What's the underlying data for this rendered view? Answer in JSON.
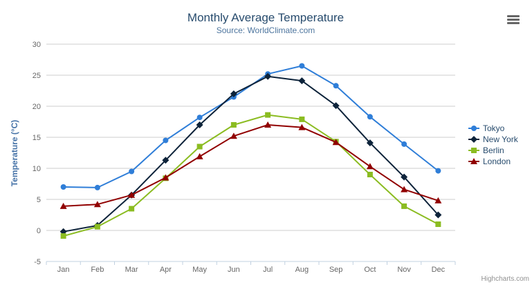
{
  "title": "Monthly Average Temperature",
  "subtitle": "Source: WorldClimate.com",
  "credits": "Highcharts.com",
  "context_menu": {
    "icon": "hamburger-icon",
    "color": "#666666"
  },
  "colors": {
    "title": "#274b6d",
    "subtitle": "#4d759e",
    "axis_labels": "#666666",
    "yaxis_title": "#4572a7",
    "gridline": "#cccccc",
    "xaxis_line": "#c0d0e0",
    "legend_text": "#274b6d",
    "credits_text": "#909090",
    "background": "#ffffff"
  },
  "chart_data": {
    "type": "line",
    "title": "Monthly Average Temperature",
    "subtitle": "Source: WorldClimate.com",
    "xlabel": "",
    "ylabel": "Temperature (°C)",
    "categories": [
      "Jan",
      "Feb",
      "Mar",
      "Apr",
      "May",
      "Jun",
      "Jul",
      "Aug",
      "Sep",
      "Oct",
      "Nov",
      "Dec"
    ],
    "series": [
      {
        "name": "Tokyo",
        "color": "#2f7ed8",
        "marker": "circle",
        "values": [
          7.0,
          6.9,
          9.5,
          14.5,
          18.2,
          21.5,
          25.2,
          26.5,
          23.3,
          18.3,
          13.9,
          9.6
        ]
      },
      {
        "name": "New York",
        "color": "#0d233a",
        "marker": "diamond",
        "values": [
          -0.2,
          0.8,
          5.7,
          11.3,
          17.0,
          22.0,
          24.8,
          24.1,
          20.1,
          14.1,
          8.6,
          2.5
        ]
      },
      {
        "name": "Berlin",
        "color": "#8bbc21",
        "marker": "square",
        "values": [
          -0.9,
          0.6,
          3.5,
          8.4,
          13.5,
          17.0,
          18.6,
          17.9,
          14.3,
          9.0,
          3.9,
          1.0
        ]
      },
      {
        "name": "London",
        "color": "#910000",
        "marker": "triangle",
        "values": [
          3.9,
          4.2,
          5.7,
          8.5,
          11.9,
          15.2,
          17.0,
          16.6,
          14.2,
          10.3,
          6.6,
          4.8
        ]
      }
    ],
    "ylim": [
      -5,
      30
    ],
    "tick_interval": 5,
    "grid": true,
    "legend_position": "right"
  }
}
